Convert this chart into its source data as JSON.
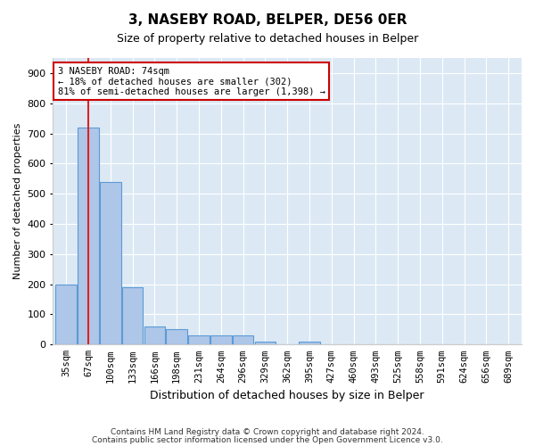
{
  "title1": "3, NASEBY ROAD, BELPER, DE56 0ER",
  "title2": "Size of property relative to detached houses in Belper",
  "xlabel": "Distribution of detached houses by size in Belper",
  "ylabel": "Number of detached properties",
  "bins": [
    "35sqm",
    "67sqm",
    "100sqm",
    "133sqm",
    "166sqm",
    "198sqm",
    "231sqm",
    "264sqm",
    "296sqm",
    "329sqm",
    "362sqm",
    "395sqm",
    "427sqm",
    "460sqm",
    "493sqm",
    "525sqm",
    "558sqm",
    "591sqm",
    "624sqm",
    "656sqm",
    "689sqm"
  ],
  "values": [
    200,
    720,
    540,
    190,
    60,
    50,
    30,
    30,
    30,
    10,
    0,
    10,
    0,
    0,
    0,
    0,
    0,
    0,
    0,
    0,
    0
  ],
  "bar_color": "#aec6e8",
  "bar_edge_color": "#5b9bd5",
  "bg_color": "#dce9f5",
  "grid_color": "#ffffff",
  "red_line_x": 1.0,
  "red_line_color": "#dd2222",
  "annotation_line1": "3 NASEBY ROAD: 74sqm",
  "annotation_line2": "← 18% of detached houses are smaller (302)",
  "annotation_line3": "81% of semi-detached houses are larger (1,398) →",
  "annotation_box_color": "#ffffff",
  "annotation_box_edge": "#cc0000",
  "footer1": "Contains HM Land Registry data © Crown copyright and database right 2024.",
  "footer2": "Contains public sector information licensed under the Open Government Licence v3.0.",
  "ylim": [
    0,
    950
  ],
  "yticks": [
    0,
    100,
    200,
    300,
    400,
    500,
    600,
    700,
    800,
    900
  ]
}
